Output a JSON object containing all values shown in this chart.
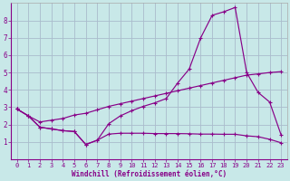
{
  "xlabel": "Windchill (Refroidissement éolien,°C)",
  "bg_color": "#c8e8e8",
  "line_color": "#880088",
  "grid_color": "#aabbcc",
  "xlim": [
    -0.5,
    23.5
  ],
  "ylim": [
    0,
    9
  ],
  "xticks": [
    0,
    1,
    2,
    3,
    4,
    5,
    6,
    7,
    8,
    9,
    10,
    11,
    12,
    13,
    14,
    15,
    16,
    17,
    18,
    19,
    20,
    21,
    22,
    23
  ],
  "yticks": [
    1,
    2,
    3,
    4,
    5,
    6,
    7,
    8
  ],
  "line1_x": [
    0,
    1,
    2,
    3,
    4,
    5,
    6,
    7,
    8,
    9,
    10,
    11,
    12,
    13,
    14,
    15,
    16,
    17,
    18,
    19,
    20,
    21,
    22,
    23
  ],
  "line1_y": [
    2.9,
    2.5,
    1.85,
    1.75,
    1.65,
    1.6,
    0.85,
    1.1,
    2.05,
    2.5,
    2.8,
    3.05,
    3.25,
    3.5,
    4.4,
    5.2,
    7.0,
    8.3,
    8.5,
    8.75,
    5.0,
    3.85,
    3.3,
    1.4
  ],
  "line2_x": [
    0,
    1,
    2,
    3,
    4,
    5,
    6,
    7,
    8,
    9,
    10,
    11,
    12,
    13,
    14,
    15,
    16,
    17,
    18,
    19,
    20,
    21,
    22,
    23
  ],
  "line2_y": [
    2.9,
    2.5,
    2.15,
    2.25,
    2.35,
    2.55,
    2.65,
    2.85,
    3.05,
    3.2,
    3.35,
    3.5,
    3.65,
    3.8,
    3.95,
    4.1,
    4.25,
    4.4,
    4.55,
    4.7,
    4.85,
    4.92,
    5.0,
    5.05
  ],
  "line3_x": [
    0,
    1,
    2,
    3,
    4,
    5,
    6,
    7,
    8,
    9,
    10,
    11,
    12,
    13,
    14,
    15,
    16,
    17,
    18,
    19,
    20,
    21,
    22,
    23
  ],
  "line3_y": [
    2.9,
    2.5,
    1.85,
    1.75,
    1.65,
    1.6,
    0.85,
    1.1,
    1.45,
    1.5,
    1.5,
    1.5,
    1.48,
    1.48,
    1.48,
    1.47,
    1.45,
    1.45,
    1.44,
    1.44,
    1.35,
    1.3,
    1.15,
    0.95
  ]
}
